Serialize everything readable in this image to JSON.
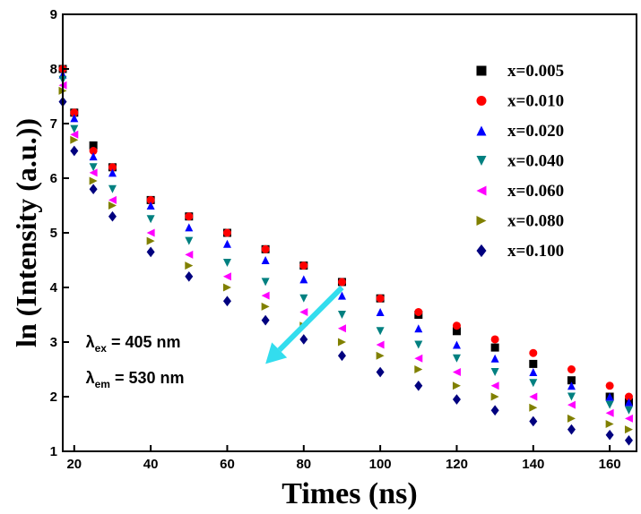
{
  "chart_data": {
    "type": "scatter",
    "xlabel": "Times (ns)",
    "ylabel": "ln (Intensity (a.u.))",
    "xlim": [
      17,
      167
    ],
    "ylim": [
      1,
      9
    ],
    "xticks": [
      20,
      40,
      60,
      80,
      100,
      120,
      140,
      160
    ],
    "yticks": [
      1,
      2,
      3,
      4,
      5,
      6,
      7,
      8,
      9
    ],
    "legend_position": "top-right",
    "grid": false,
    "series": [
      {
        "name": "x=0.005",
        "marker": "square",
        "color": "#000000",
        "points": [
          [
            17,
            8.0
          ],
          [
            20,
            7.2
          ],
          [
            25,
            6.6
          ],
          [
            30,
            6.2
          ],
          [
            40,
            5.6
          ],
          [
            50,
            5.3
          ],
          [
            60,
            5.0
          ],
          [
            70,
            4.7
          ],
          [
            80,
            4.4
          ],
          [
            90,
            4.1
          ],
          [
            100,
            3.8
          ],
          [
            110,
            3.5
          ],
          [
            120,
            3.2
          ],
          [
            130,
            2.9
          ],
          [
            140,
            2.6
          ],
          [
            150,
            2.3
          ],
          [
            160,
            2.0
          ],
          [
            165,
            1.9
          ]
        ]
      },
      {
        "name": "x=0.010",
        "marker": "circle",
        "color": "#ff0000",
        "points": [
          [
            17,
            8.0
          ],
          [
            20,
            7.2
          ],
          [
            25,
            6.5
          ],
          [
            30,
            6.2
          ],
          [
            40,
            5.6
          ],
          [
            50,
            5.3
          ],
          [
            60,
            5.0
          ],
          [
            70,
            4.7
          ],
          [
            80,
            4.4
          ],
          [
            90,
            4.1
          ],
          [
            100,
            3.8
          ],
          [
            110,
            3.55
          ],
          [
            120,
            3.3
          ],
          [
            130,
            3.05
          ],
          [
            140,
            2.8
          ],
          [
            150,
            2.5
          ],
          [
            160,
            2.2
          ],
          [
            165,
            2.0
          ]
        ]
      },
      {
        "name": "x=0.020",
        "marker": "triangle-up",
        "color": "#0000ff",
        "points": [
          [
            17,
            7.9
          ],
          [
            20,
            7.1
          ],
          [
            25,
            6.4
          ],
          [
            30,
            6.1
          ],
          [
            40,
            5.5
          ],
          [
            50,
            5.1
          ],
          [
            60,
            4.8
          ],
          [
            70,
            4.5
          ],
          [
            80,
            4.15
          ],
          [
            90,
            3.85
          ],
          [
            100,
            3.55
          ],
          [
            110,
            3.25
          ],
          [
            120,
            2.95
          ],
          [
            130,
            2.7
          ],
          [
            140,
            2.45
          ],
          [
            150,
            2.2
          ],
          [
            160,
            2.0
          ],
          [
            165,
            1.9
          ]
        ]
      },
      {
        "name": "x=0.040",
        "marker": "triangle-down",
        "color": "#008080",
        "points": [
          [
            17,
            7.8
          ],
          [
            20,
            6.9
          ],
          [
            25,
            6.2
          ],
          [
            30,
            5.8
          ],
          [
            40,
            5.25
          ],
          [
            50,
            4.85
          ],
          [
            60,
            4.45
          ],
          [
            70,
            4.1
          ],
          [
            80,
            3.8
          ],
          [
            90,
            3.5
          ],
          [
            100,
            3.2
          ],
          [
            110,
            2.95
          ],
          [
            120,
            2.7
          ],
          [
            130,
            2.45
          ],
          [
            140,
            2.25
          ],
          [
            150,
            2.0
          ],
          [
            160,
            1.85
          ],
          [
            165,
            1.75
          ]
        ]
      },
      {
        "name": "x=0.060",
        "marker": "triangle-left",
        "color": "#ff00ff",
        "points": [
          [
            17,
            7.7
          ],
          [
            20,
            6.8
          ],
          [
            25,
            6.1
          ],
          [
            30,
            5.6
          ],
          [
            40,
            5.0
          ],
          [
            50,
            4.6
          ],
          [
            60,
            4.2
          ],
          [
            70,
            3.85
          ],
          [
            80,
            3.55
          ],
          [
            90,
            3.25
          ],
          [
            100,
            2.95
          ],
          [
            110,
            2.7
          ],
          [
            120,
            2.45
          ],
          [
            130,
            2.2
          ],
          [
            140,
            2.0
          ],
          [
            150,
            1.85
          ],
          [
            160,
            1.7
          ],
          [
            165,
            1.6
          ]
        ]
      },
      {
        "name": "x=0.080",
        "marker": "triangle-right",
        "color": "#808000",
        "points": [
          [
            17,
            7.6
          ],
          [
            20,
            6.7
          ],
          [
            25,
            5.95
          ],
          [
            30,
            5.5
          ],
          [
            40,
            4.85
          ],
          [
            50,
            4.4
          ],
          [
            60,
            4.0
          ],
          [
            70,
            3.65
          ],
          [
            80,
            3.3
          ],
          [
            90,
            3.0
          ],
          [
            100,
            2.75
          ],
          [
            110,
            2.5
          ],
          [
            120,
            2.2
          ],
          [
            130,
            2.0
          ],
          [
            140,
            1.8
          ],
          [
            150,
            1.6
          ],
          [
            160,
            1.5
          ],
          [
            165,
            1.4
          ]
        ]
      },
      {
        "name": "x=0.100",
        "marker": "diamond",
        "color": "#00007f",
        "points": [
          [
            17,
            7.4
          ],
          [
            20,
            6.5
          ],
          [
            25,
            5.8
          ],
          [
            30,
            5.3
          ],
          [
            40,
            4.65
          ],
          [
            50,
            4.2
          ],
          [
            60,
            3.75
          ],
          [
            70,
            3.4
          ],
          [
            80,
            3.05
          ],
          [
            90,
            2.75
          ],
          [
            100,
            2.45
          ],
          [
            110,
            2.2
          ],
          [
            120,
            1.95
          ],
          [
            130,
            1.75
          ],
          [
            140,
            1.55
          ],
          [
            150,
            1.4
          ],
          [
            160,
            1.3
          ],
          [
            165,
            1.2
          ]
        ]
      }
    ],
    "annotations": [
      {
        "main": "λ",
        "sub": "ex",
        "rest": " = 405 nm",
        "x": 23,
        "y": 2.9
      },
      {
        "main": "λ",
        "sub": "em",
        "rest": " = 530 nm",
        "x": 23,
        "y": 2.25
      }
    ],
    "arrow": {
      "color": "#33ddee",
      "from": [
        90,
        4.0
      ],
      "to": [
        70,
        2.6
      ]
    }
  }
}
